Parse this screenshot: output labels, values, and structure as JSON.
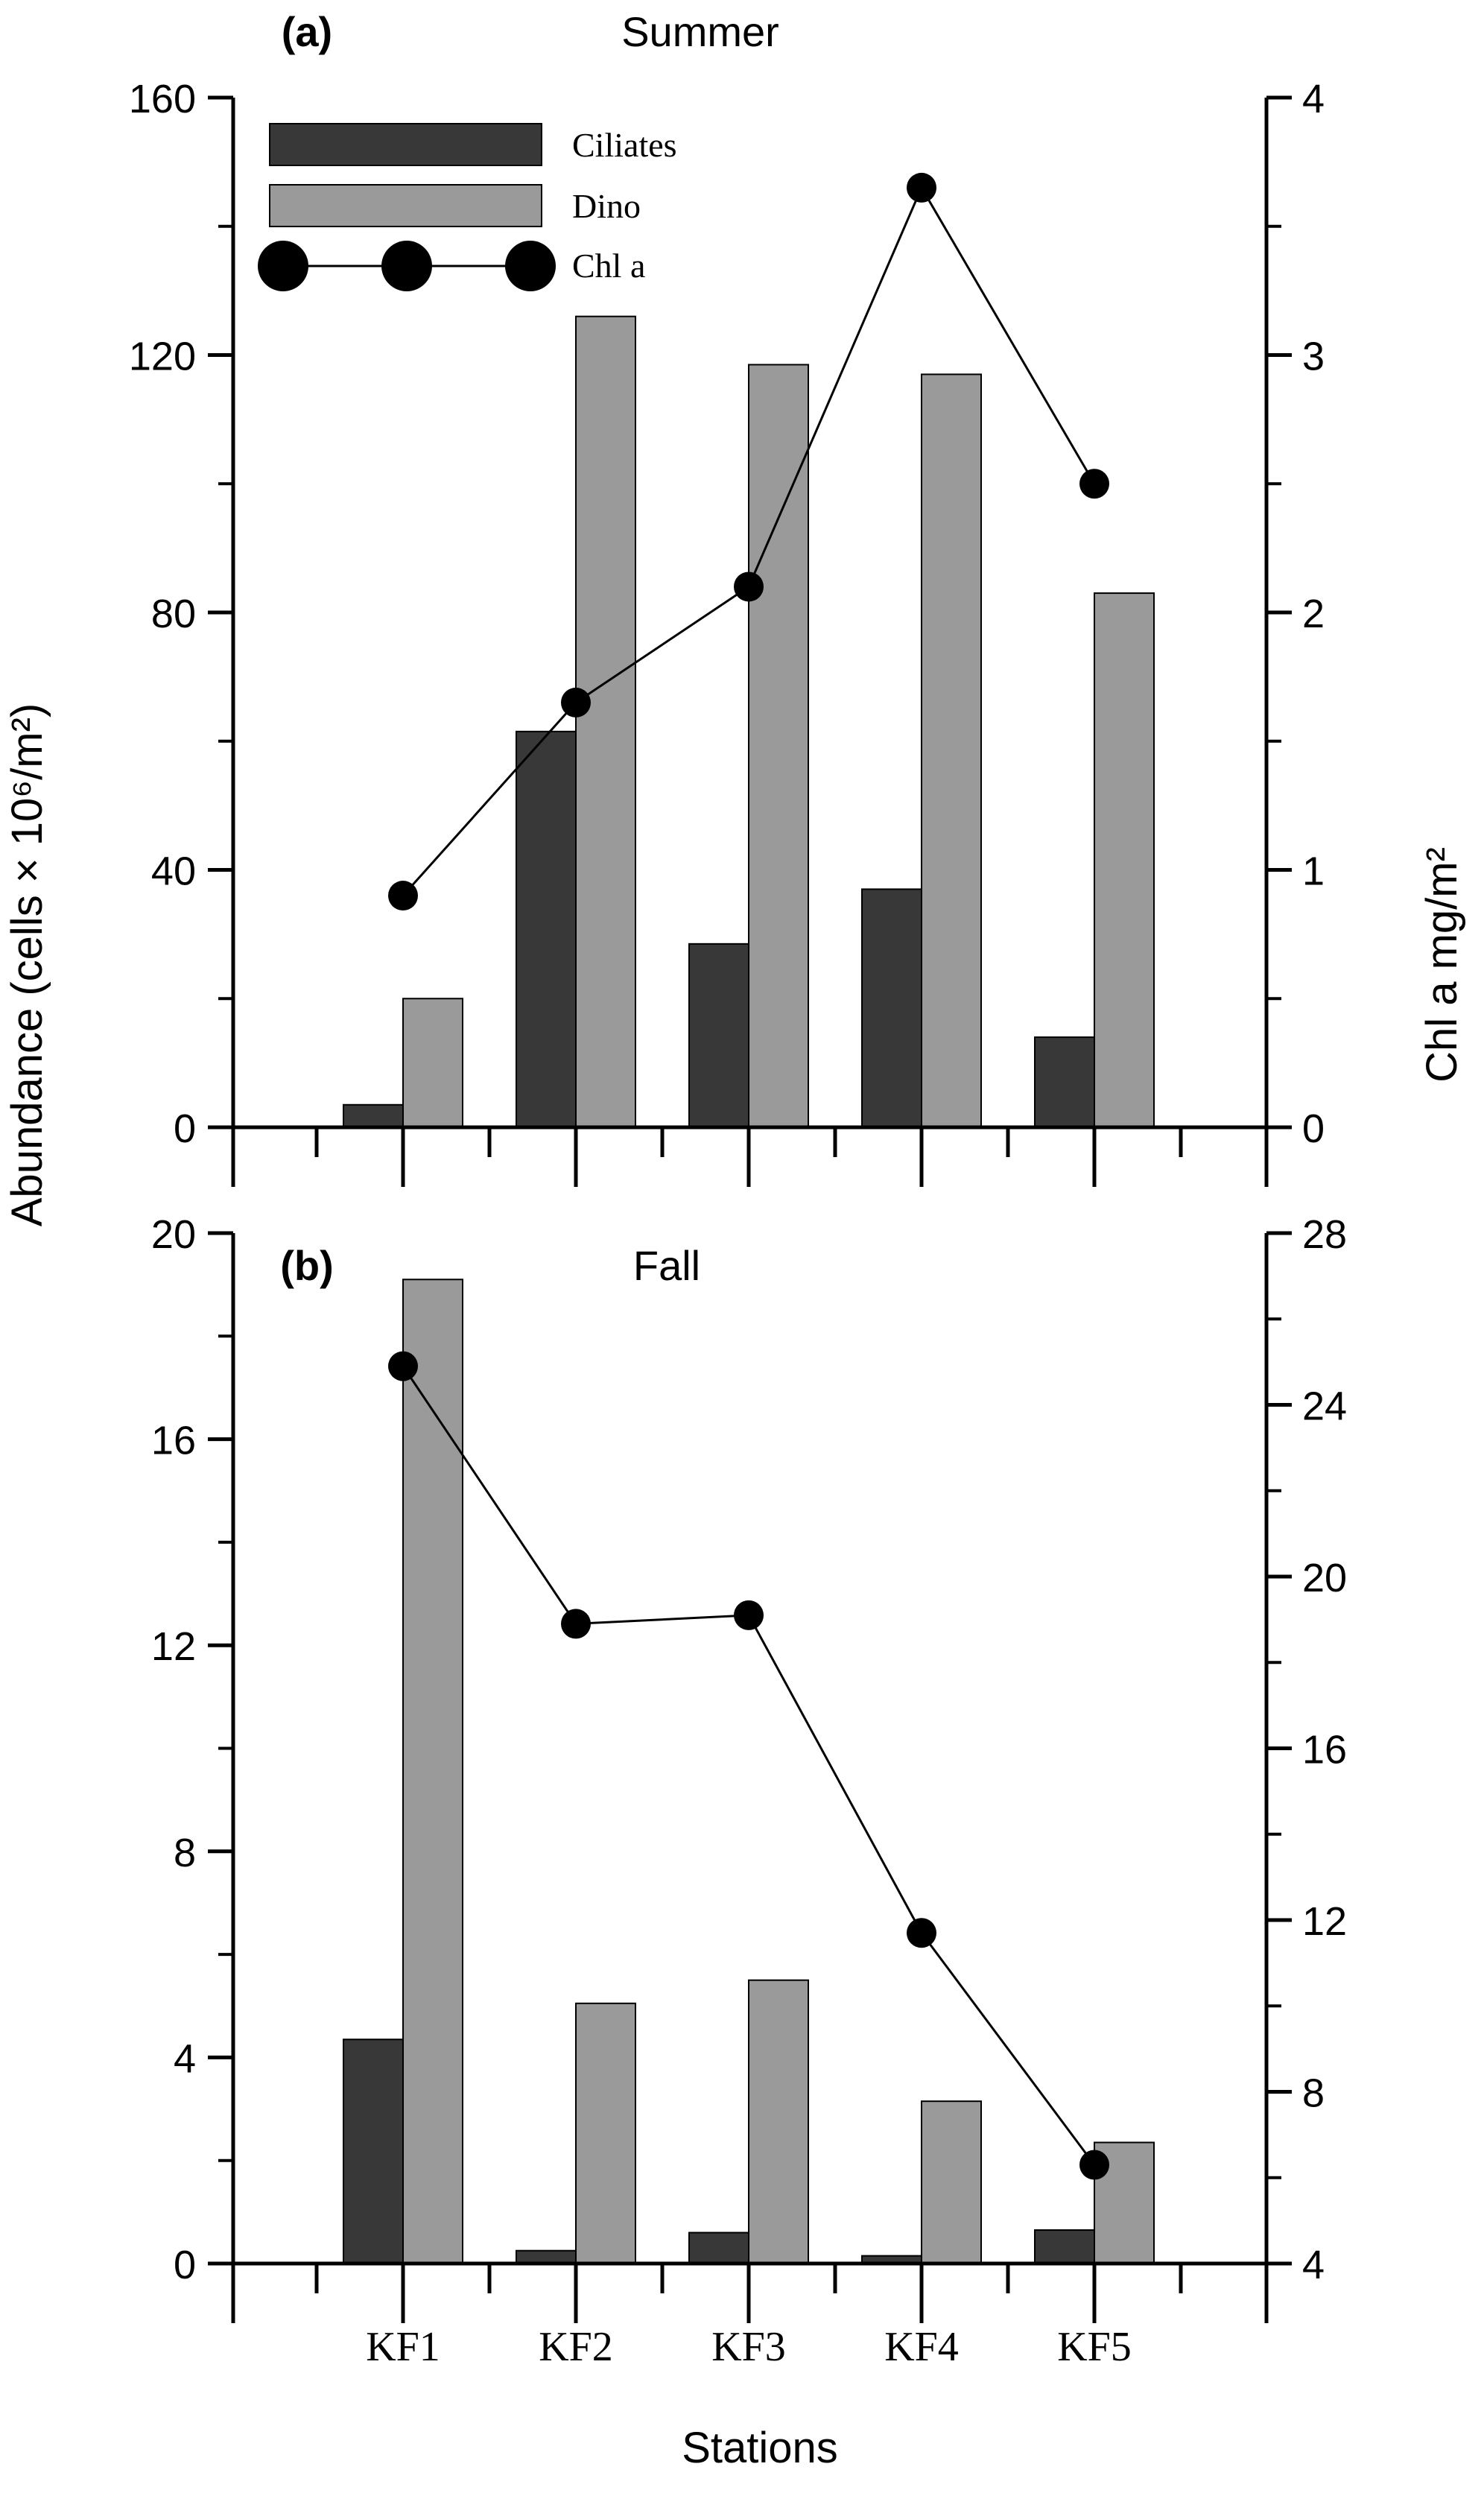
{
  "y_axis_label": "Abundance (cells × 10⁶/m²)",
  "y2_axis_label": "Chl a mg/m²",
  "x_axis_label": "Stations",
  "legend": {
    "ciliates": "Ciliates",
    "dino": "Dino",
    "chla": "Chl a"
  },
  "colors": {
    "ciliates": "#383838",
    "dino": "#9a9a9a",
    "line": "#000000"
  },
  "chart_data": [
    {
      "type": "bar",
      "panel": "(a)",
      "title": "Summer",
      "categories": [
        "KF1",
        "KF2",
        "KF3",
        "KF4",
        "KF5"
      ],
      "ylim": [
        0,
        160
      ],
      "yticks": [
        0,
        40,
        80,
        120,
        160
      ],
      "y2lim": [
        0,
        4
      ],
      "y2ticks": [
        0,
        1,
        2,
        3,
        4
      ],
      "series": [
        {
          "name": "Ciliates",
          "axis": "left",
          "values": [
            3.5,
            61.5,
            28.5,
            37,
            14
          ]
        },
        {
          "name": "Dino",
          "axis": "left",
          "values": [
            20,
            126,
            118.5,
            117,
            83
          ]
        },
        {
          "name": "Chl a",
          "axis": "right",
          "type": "line",
          "values": [
            0.9,
            1.65,
            2.1,
            3.65,
            2.5
          ]
        }
      ],
      "legend_position": "top-left"
    },
    {
      "type": "bar",
      "panel": "(b)",
      "title": "Fall",
      "categories": [
        "KF1",
        "KF2",
        "KF3",
        "KF4",
        "KF5"
      ],
      "ylim": [
        0,
        20
      ],
      "yticks": [
        0,
        4,
        8,
        12,
        16,
        20
      ],
      "y2lim": [
        4,
        28
      ],
      "y2ticks": [
        4,
        8,
        12,
        16,
        20,
        24,
        28
      ],
      "series": [
        {
          "name": "Ciliates",
          "axis": "left",
          "values": [
            4.35,
            0.25,
            0.6,
            0.15,
            0.65
          ]
        },
        {
          "name": "Dino",
          "axis": "left",
          "values": [
            19.1,
            5.05,
            5.5,
            3.15,
            2.35
          ]
        },
        {
          "name": "Chl a",
          "axis": "right",
          "type": "line",
          "values": [
            24.9,
            18.9,
            19.1,
            11.7,
            6.3
          ]
        }
      ]
    }
  ]
}
